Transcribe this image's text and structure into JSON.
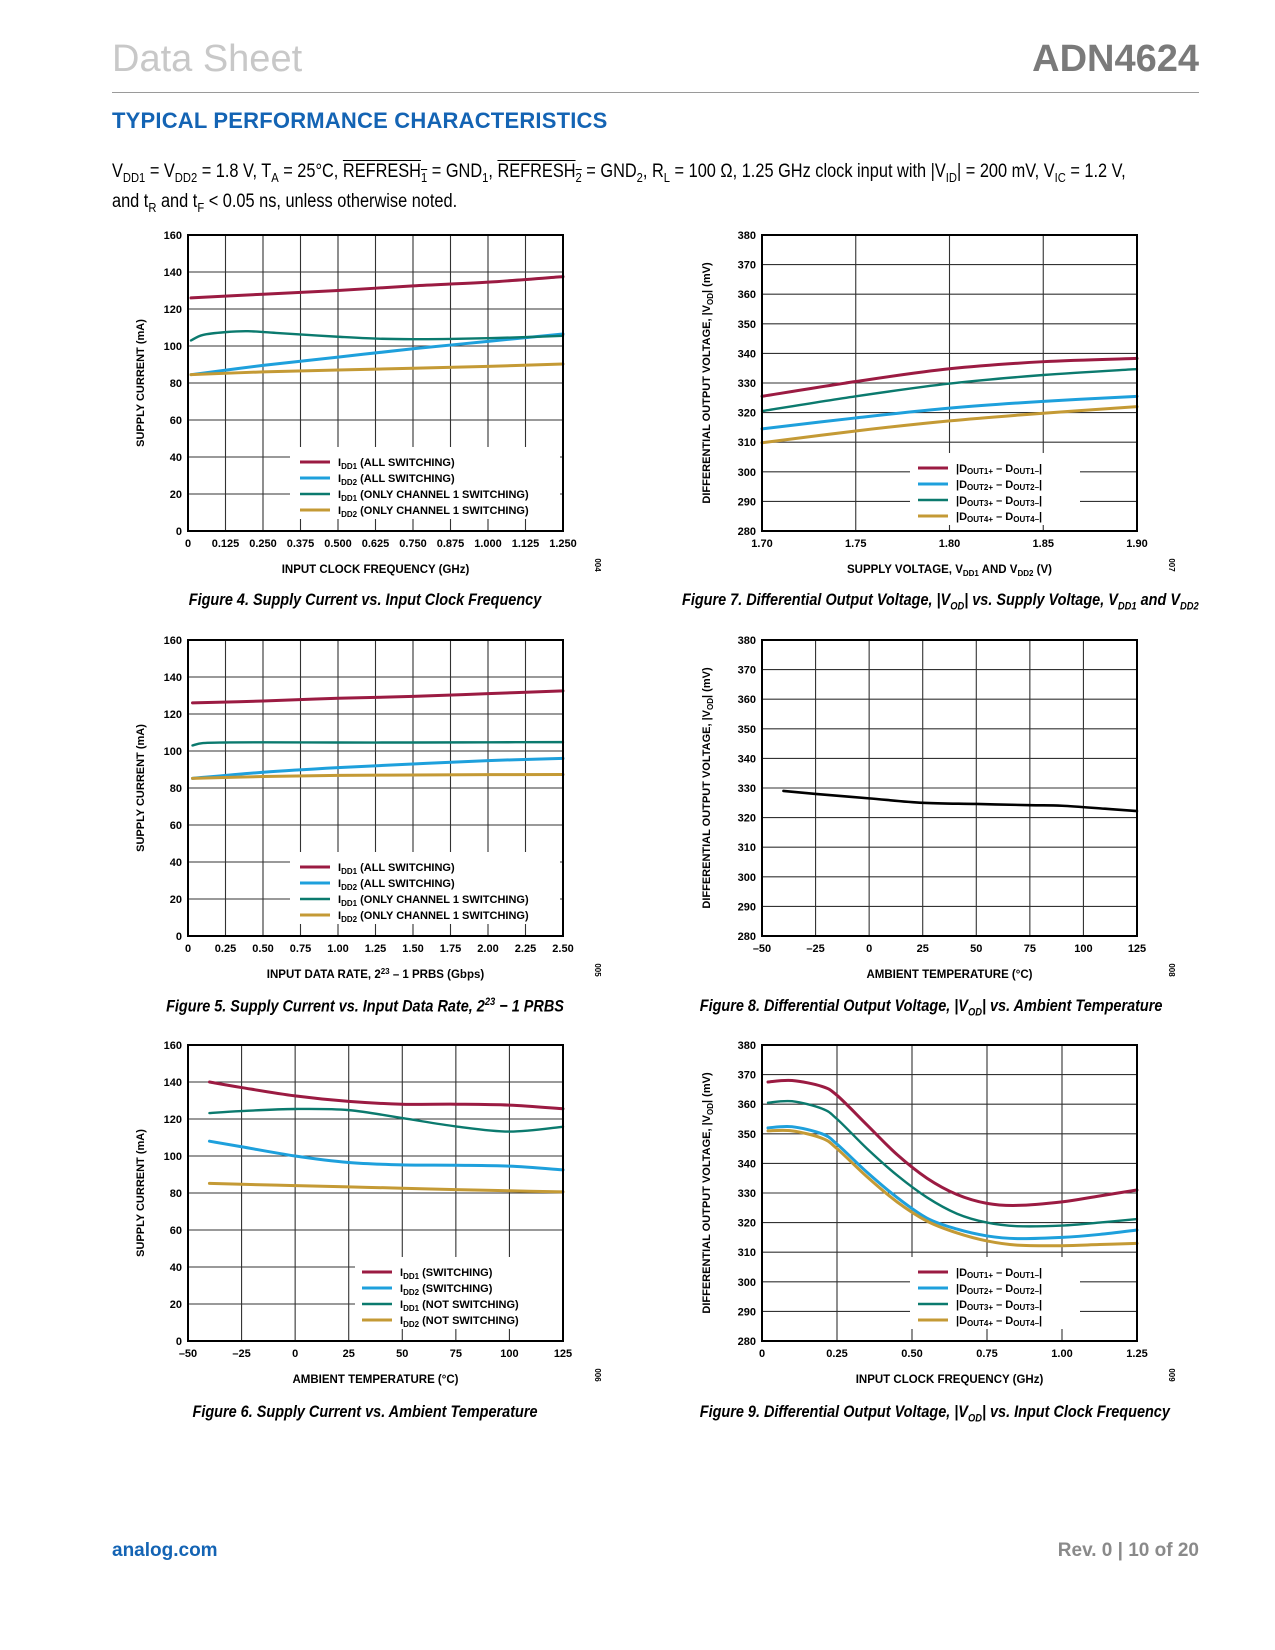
{
  "header": {
    "left": "Data Sheet",
    "right": "ADN4624"
  },
  "section_title": "TYPICAL PERFORMANCE CHARACTERISTICS",
  "conditions": {
    "line1_parts": [
      "V",
      "DD1",
      " = V",
      "DD2",
      " = 1.8 V, T",
      "A",
      " = 25°C, ",
      "REFRESH",
      "1",
      " = GND",
      "1",
      ", ",
      "REFRESH",
      "2",
      " = GND",
      "2",
      ", R",
      "L",
      " = 100 Ω, 1.25 GHz clock input with |V",
      "ID",
      "| = 200 mV, V",
      "IC",
      " = 1.2 V,"
    ],
    "line2": "and tR and tF < 0.05 ns, unless otherwise noted."
  },
  "footer": {
    "left": "analog.com",
    "right": "Rev. 0 | 10 of 20"
  },
  "colors": {
    "red": "#9b1b42",
    "blue": "#1ea0dc",
    "teal": "#0b7a6e",
    "gold": "#c49a35",
    "black": "#000000"
  },
  "chart_data": [
    {
      "id": "fig4",
      "type": "line",
      "caption": "Figure 4. Supply Current vs. Input Clock Frequency",
      "figure_code": "004",
      "xlabel": "INPUT CLOCK FREQUENCY (GHz)",
      "ylabel": "SUPPLY CURRENT (mA)",
      "xlim": [
        0,
        1.25
      ],
      "ylim": [
        0,
        160
      ],
      "xticks": [
        0,
        0.125,
        0.25,
        0.375,
        0.5,
        0.625,
        0.75,
        0.875,
        1.0,
        1.125,
        1.25
      ],
      "xtick_labels": [
        "0",
        "0.125",
        "0.250",
        "0.375",
        "0.500",
        "0.625",
        "0.750",
        "0.875",
        "1.000",
        "1.125",
        "1.250"
      ],
      "yticks": [
        0,
        20,
        40,
        60,
        80,
        100,
        120,
        140,
        160
      ],
      "ytick_labels": [
        "0",
        "20",
        "40",
        "60",
        "80",
        "100",
        "120",
        "140",
        "160"
      ],
      "grid": true,
      "legend_position": "bottom-right",
      "series": [
        {
          "name": "IDD1 (ALL SWITCHING)",
          "color": "red",
          "x": [
            0.01,
            0.25,
            0.5,
            0.75,
            1.0,
            1.25
          ],
          "y": [
            126,
            128,
            130,
            132.5,
            134.5,
            137.5
          ]
        },
        {
          "name": "IDD2 (ALL SWITCHING)",
          "color": "blue",
          "x": [
            0.01,
            0.25,
            0.5,
            0.75,
            1.0,
            1.25
          ],
          "y": [
            84.5,
            89.5,
            94,
            98.5,
            102.5,
            106.5
          ]
        },
        {
          "name": "IDD1 (ONLY CHANNEL 1 SWITCHING)",
          "color": "teal",
          "x": [
            0.01,
            0.05,
            0.125,
            0.2,
            0.3,
            0.4,
            0.5,
            0.625,
            0.75,
            0.875,
            1.0,
            1.125,
            1.25
          ],
          "y": [
            103,
            106,
            107.5,
            108,
            107,
            106,
            105,
            104,
            103.7,
            103.8,
            104.2,
            104.8,
            105.5
          ]
        },
        {
          "name": "IDD2 (ONLY CHANNEL 1 SWITCHING)",
          "color": "gold",
          "x": [
            0.01,
            0.25,
            0.5,
            0.75,
            1.0,
            1.25
          ],
          "y": [
            84.5,
            86,
            87,
            88,
            89,
            90.3
          ]
        }
      ],
      "legend_labels": [
        {
          "main": "I",
          "sub": "DD1",
          "rest": " (ALL SWITCHING)"
        },
        {
          "main": "I",
          "sub": "DD2",
          "rest": " (ALL SWITCHING)"
        },
        {
          "main": "I",
          "sub": "DD1",
          "rest": " (ONLY CHANNEL 1 SWITCHING)"
        },
        {
          "main": "I",
          "sub": "DD2",
          "rest": " (ONLY CHANNEL 1 SWITCHING)"
        }
      ]
    },
    {
      "id": "fig7",
      "type": "line",
      "caption": "Figure 7. Differential Output Voltage, |VOD| vs. Supply Voltage, VDD1 and VDD2",
      "figure_code": "007",
      "xlabel": "SUPPLY VOLTAGE, VDD1 AND VDD2 (V)",
      "ylabel": "DIFFERENTIAL OUTPUT VOLTAGE, |VOD| (mV)",
      "xlim": [
        1.7,
        1.9
      ],
      "ylim": [
        280,
        380
      ],
      "xticks": [
        1.7,
        1.75,
        1.8,
        1.85,
        1.9
      ],
      "xtick_labels": [
        "1.70",
        "1.75",
        "1.80",
        "1.85",
        "1.90"
      ],
      "yticks": [
        280,
        290,
        300,
        310,
        320,
        330,
        340,
        350,
        360,
        370,
        380
      ],
      "ytick_labels": [
        "280",
        "290",
        "300",
        "310",
        "320",
        "330",
        "340",
        "350",
        "360",
        "370",
        "380"
      ],
      "grid": true,
      "legend_position": "bottom-right",
      "series": [
        {
          "name": "|DOUT1+ − DOUT1−|",
          "color": "red",
          "x": [
            1.7,
            1.75,
            1.8,
            1.85,
            1.9
          ],
          "y": [
            325.5,
            330.5,
            334.8,
            337.2,
            338.3
          ]
        },
        {
          "name": "|DOUT2+ − DOUT2−|",
          "color": "blue",
          "x": [
            1.7,
            1.75,
            1.8,
            1.85,
            1.9
          ],
          "y": [
            314.5,
            318.2,
            321.5,
            323.8,
            325.5
          ]
        },
        {
          "name": "|DOUT3+ − DOUT3−|",
          "color": "teal",
          "x": [
            1.7,
            1.75,
            1.8,
            1.85,
            1.9
          ],
          "y": [
            320.5,
            325.5,
            329.8,
            332.7,
            334.7
          ]
        },
        {
          "name": "|DOUT4+ − DOUT4−|",
          "color": "gold",
          "x": [
            1.7,
            1.75,
            1.8,
            1.85,
            1.9
          ],
          "y": [
            309.8,
            313.8,
            317.2,
            319.8,
            322
          ]
        }
      ],
      "legend_labels": [
        {
          "a": "|D",
          "b": "OUT1+",
          "c": " – D",
          "d": "OUT1–",
          "e": "|"
        },
        {
          "a": "|D",
          "b": "OUT2+",
          "c": " – D",
          "d": "OUT2–",
          "e": "|"
        },
        {
          "a": "|D",
          "b": "OUT3+",
          "c": " – D",
          "d": "OUT3–",
          "e": "|"
        },
        {
          "a": "|D",
          "b": "OUT4+",
          "c": " – D",
          "d": "OUT4–",
          "e": "|"
        }
      ]
    },
    {
      "id": "fig5",
      "type": "line",
      "caption": "Figure 5. Supply Current vs. Input Data Rate, 2^23 − 1 PRBS",
      "figure_code": "005",
      "xlabel": "INPUT DATA RATE, 2^23 – 1 PRBS (Gbps)",
      "ylabel": "SUPPLY CURRENT (mA)",
      "xlim": [
        0,
        2.5
      ],
      "ylim": [
        0,
        160
      ],
      "xticks": [
        0,
        0.25,
        0.5,
        0.75,
        1.0,
        1.25,
        1.5,
        1.75,
        2.0,
        2.25,
        2.5
      ],
      "xtick_labels": [
        "0",
        "0.25",
        "0.50",
        "0.75",
        "1.00",
        "1.25",
        "1.50",
        "1.75",
        "2.00",
        "2.25",
        "2.50"
      ],
      "yticks": [
        0,
        20,
        40,
        60,
        80,
        100,
        120,
        140,
        160
      ],
      "ytick_labels": [
        "0",
        "20",
        "40",
        "60",
        "80",
        "100",
        "120",
        "140",
        "160"
      ],
      "grid": true,
      "legend_position": "bottom-right",
      "series": [
        {
          "name": "IDD1 (ALL SWITCHING)",
          "color": "red",
          "x": [
            0.03,
            0.5,
            1.0,
            1.5,
            2.0,
            2.5
          ],
          "y": [
            126,
            127,
            128.5,
            129.5,
            131,
            132.5
          ]
        },
        {
          "name": "IDD2 (ALL SWITCHING)",
          "color": "blue",
          "x": [
            0.03,
            0.5,
            1.0,
            1.5,
            2.0,
            2.5
          ],
          "y": [
            85.2,
            88.5,
            91,
            93,
            94.8,
            96
          ]
        },
        {
          "name": "IDD1 (ONLY CHANNEL 1 SWITCHING)",
          "color": "teal",
          "x": [
            0.03,
            0.1,
            0.25,
            0.5,
            1.0,
            1.5,
            2.0,
            2.5
          ],
          "y": [
            103,
            104.3,
            104.6,
            104.7,
            104.6,
            104.6,
            104.7,
            104.8
          ]
        },
        {
          "name": "IDD2 (ONLY CHANNEL 1 SWITCHING)",
          "color": "gold",
          "x": [
            0.03,
            0.5,
            1.0,
            1.5,
            2.0,
            2.5
          ],
          "y": [
            85.2,
            86.2,
            86.8,
            87,
            87.2,
            87.3
          ]
        }
      ],
      "legend_labels": [
        {
          "main": "I",
          "sub": "DD1",
          "rest": " (ALL SWITCHING)"
        },
        {
          "main": "I",
          "sub": "DD2",
          "rest": " (ALL SWITCHING)"
        },
        {
          "main": "I",
          "sub": "DD1",
          "rest": " (ONLY CHANNEL 1 SWITCHING)"
        },
        {
          "main": "I",
          "sub": "DD2",
          "rest": " (ONLY CHANNEL 1 SWITCHING)"
        }
      ]
    },
    {
      "id": "fig8",
      "type": "line",
      "caption": "Figure 8. Differential Output Voltage, |VOD| vs. Ambient Temperature",
      "figure_code": "008",
      "xlabel": "AMBIENT TEMPERATURE (°C)",
      "ylabel": "DIFFERENTIAL OUTPUT VOLTAGE, |VOD| (mV)",
      "xlim": [
        -50,
        125
      ],
      "ylim": [
        280,
        380
      ],
      "xticks": [
        -50,
        -25,
        0,
        25,
        50,
        75,
        100,
        125
      ],
      "xtick_labels": [
        "–50",
        "–25",
        "0",
        "25",
        "50",
        "75",
        "100",
        "125"
      ],
      "yticks": [
        280,
        290,
        300,
        310,
        320,
        330,
        340,
        350,
        360,
        370,
        380
      ],
      "ytick_labels": [
        "280",
        "290",
        "300",
        "310",
        "320",
        "330",
        "340",
        "350",
        "360",
        "370",
        "380"
      ],
      "grid": true,
      "legend_position": "none",
      "series": [
        {
          "name": "|VOD|",
          "color": "black",
          "x": [
            -40,
            -25,
            0,
            25,
            50,
            75,
            90,
            110,
            125
          ],
          "y": [
            329,
            328,
            326.5,
            325,
            324.6,
            324.2,
            324,
            323,
            322.2
          ]
        }
      ],
      "legend_labels": []
    },
    {
      "id": "fig6",
      "type": "line",
      "caption": "Figure 6. Supply Current vs. Ambient Temperature",
      "figure_code": "006",
      "xlabel": "AMBIENT TEMPERATURE (°C)",
      "ylabel": "SUPPLY CURRENT (mA)",
      "xlim": [
        -50,
        125
      ],
      "ylim": [
        0,
        160
      ],
      "xticks": [
        -50,
        -25,
        0,
        25,
        50,
        75,
        100,
        125
      ],
      "xtick_labels": [
        "–50",
        "–25",
        "0",
        "25",
        "50",
        "75",
        "100",
        "125"
      ],
      "yticks": [
        0,
        20,
        40,
        60,
        80,
        100,
        120,
        140,
        160
      ],
      "ytick_labels": [
        "0",
        "20",
        "40",
        "60",
        "80",
        "100",
        "120",
        "140",
        "160"
      ],
      "grid": true,
      "legend_position": "bottom-right",
      "series": [
        {
          "name": "IDD1 (SWITCHING)",
          "color": "red",
          "x": [
            -40,
            -25,
            0,
            25,
            50,
            75,
            100,
            125
          ],
          "y": [
            140,
            137,
            132.5,
            129.5,
            128,
            128,
            127.5,
            125.5
          ]
        },
        {
          "name": "IDD2 (SWITCHING)",
          "color": "blue",
          "x": [
            -40,
            -25,
            0,
            25,
            50,
            75,
            100,
            125
          ],
          "y": [
            108,
            105,
            100,
            96.5,
            95.2,
            95,
            94.5,
            92.5
          ]
        },
        {
          "name": "IDD1 (NOT SWITCHING)",
          "color": "teal",
          "x": [
            -40,
            -25,
            0,
            25,
            50,
            75,
            100,
            125
          ],
          "y": [
            123.2,
            124.3,
            125.4,
            124.8,
            120.5,
            116,
            113.2,
            115.8
          ]
        },
        {
          "name": "IDD2 (NOT SWITCHING)",
          "color": "gold",
          "x": [
            -40,
            -25,
            0,
            25,
            50,
            75,
            100,
            125
          ],
          "y": [
            85.2,
            84.7,
            84,
            83.3,
            82.6,
            81.8,
            81.2,
            80.6
          ]
        }
      ],
      "legend_labels": [
        {
          "main": "I",
          "sub": "DD1",
          "rest": " (SWITCHING)"
        },
        {
          "main": "I",
          "sub": "DD2",
          "rest": " (SWITCHING)"
        },
        {
          "main": "I",
          "sub": "DD1",
          "rest": " (NOT SWITCHING)"
        },
        {
          "main": "I",
          "sub": "DD2",
          "rest": " (NOT SWITCHING)"
        }
      ]
    },
    {
      "id": "fig9",
      "type": "line",
      "caption": "Figure 9. Differential Output Voltage, |VOD| vs. Input Clock Frequency",
      "figure_code": "009",
      "xlabel": "INPUT CLOCK FREQUENCY (GHz)",
      "ylabel": "DIFFERENTIAL OUTPUT VOLTAGE, |VOD| (mV)",
      "xlim": [
        0,
        1.25
      ],
      "ylim": [
        280,
        380
      ],
      "xticks": [
        0,
        0.25,
        0.5,
        0.75,
        1.0,
        1.25
      ],
      "xtick_labels": [
        "0",
        "0.25",
        "0.50",
        "0.75",
        "1.00",
        "1.25"
      ],
      "yticks": [
        280,
        290,
        300,
        310,
        320,
        330,
        340,
        350,
        360,
        370,
        380
      ],
      "ytick_labels": [
        "280",
        "290",
        "300",
        "310",
        "320",
        "330",
        "340",
        "350",
        "360",
        "370",
        "380"
      ],
      "grid": true,
      "legend_position": "bottom-right",
      "series": [
        {
          "name": "|DOUT1+ − DOUT1−|",
          "color": "red",
          "x": [
            0.02,
            0.1,
            0.2,
            0.25,
            0.35,
            0.45,
            0.55,
            0.65,
            0.75,
            0.85,
            1.0,
            1.125,
            1.25
          ],
          "y": [
            367.5,
            368,
            366,
            363,
            353,
            343,
            335,
            329.5,
            326.5,
            325.8,
            327,
            329,
            331
          ]
        },
        {
          "name": "|DOUT2+ − DOUT2−|",
          "color": "blue",
          "x": [
            0.02,
            0.1,
            0.2,
            0.25,
            0.35,
            0.45,
            0.55,
            0.65,
            0.75,
            0.85,
            1.0,
            1.125,
            1.25
          ],
          "y": [
            352,
            352.4,
            350,
            346.5,
            337,
            328.5,
            321.5,
            317.8,
            315.5,
            314.6,
            315,
            316,
            317.5
          ]
        },
        {
          "name": "|DOUT3+ − DOUT3−|",
          "color": "teal",
          "x": [
            0.02,
            0.1,
            0.2,
            0.25,
            0.35,
            0.45,
            0.55,
            0.65,
            0.75,
            0.85,
            1.0,
            1.125,
            1.25
          ],
          "y": [
            360.5,
            361,
            358.5,
            355,
            345,
            336,
            328.5,
            323,
            320,
            318.8,
            319,
            320,
            321.2
          ]
        },
        {
          "name": "|DOUT4+ − DOUT4−|",
          "color": "gold",
          "x": [
            0.02,
            0.1,
            0.2,
            0.25,
            0.35,
            0.45,
            0.55,
            0.65,
            0.75,
            0.85,
            1.0,
            1.125,
            1.25
          ],
          "y": [
            351,
            351,
            348.5,
            345,
            335.5,
            327,
            320.5,
            316.5,
            313.8,
            312.4,
            312.2,
            312.6,
            313
          ]
        }
      ],
      "legend_labels": [
        {
          "a": "|D",
          "b": "OUT1+",
          "c": " – D",
          "d": "OUT1–",
          "e": "|"
        },
        {
          "a": "|D",
          "b": "OUT2+",
          "c": " – D",
          "d": "OUT2–",
          "e": "|"
        },
        {
          "a": "|D",
          "b": "OUT3+",
          "c": " – D",
          "d": "OUT3–",
          "e": "|"
        },
        {
          "a": "|D",
          "b": "OUT4+",
          "c": " – D",
          "d": "OUT4–",
          "e": "|"
        }
      ]
    }
  ],
  "captions": {
    "fig4": {
      "text": "Figure 4. Supply Current vs. Input Clock Frequency"
    },
    "fig7": {
      "pre": "Figure 7. Differential Output Voltage, |V",
      "sub1": "OD",
      "mid": "| vs. Supply Voltage, V",
      "sub2": "DD1",
      "mid2": " and V",
      "sub3": "DD2"
    },
    "fig5": {
      "pre": "Figure 5. Supply Current vs. Input Data Rate, 2",
      "sup": "23",
      "post": " − 1 PRBS"
    },
    "fig8": {
      "pre": "Figure 8. Differential Output Voltage, |V",
      "sub1": "OD",
      "post": "| vs. Ambient Temperature"
    },
    "fig6": {
      "text": "Figure 6. Supply Current vs. Ambient Temperature"
    },
    "fig9": {
      "pre": "Figure 9. Differential Output Voltage, |V",
      "sub1": "OD",
      "post": "| vs. Input Clock Frequency"
    }
  }
}
